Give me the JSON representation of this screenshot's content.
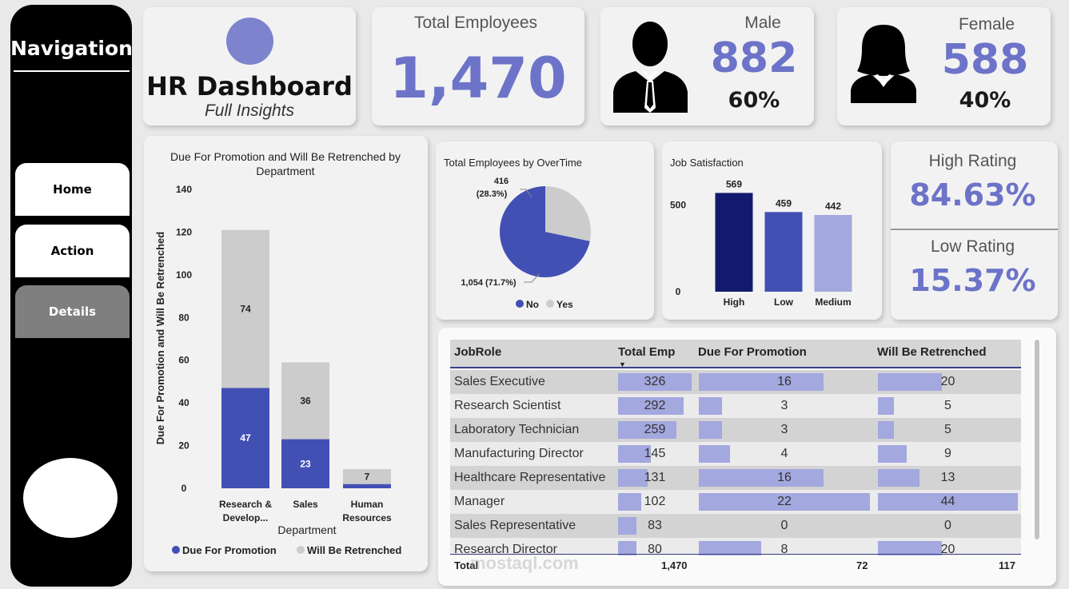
{
  "nav": {
    "title": "Navigation",
    "buttons": [
      "Home",
      "Action",
      "Details"
    ],
    "active": "Details"
  },
  "header": {
    "title": "HR Dashboard",
    "subtitle": "Full Insights"
  },
  "kpis": {
    "total_label": "Total Employees",
    "total_value": "1,470",
    "male_label": "Male",
    "male_value": "882",
    "male_pct": "60%",
    "female_label": "Female",
    "female_value": "588",
    "female_pct": "40%",
    "high_label": "High Rating",
    "high_value": "84.63%",
    "low_label": "Low Rating",
    "low_value": "15.37%"
  },
  "colors": {
    "accent": "#6c73c8",
    "dark_blue": "#131a6e",
    "mid_blue": "#4250b4",
    "light_blue": "#a3a8de",
    "grey": "#cccccc"
  },
  "icons": [
    "male-person-icon",
    "female-person-icon",
    "logo-circle-icon"
  ],
  "chart_data": [
    {
      "type": "bar",
      "stacked": true,
      "title": "Due For Promotion and Will Be Retrenched by Department",
      "xlabel": "Department",
      "ylabel": "Due For Promotion and Will Be Retrenched",
      "categories": [
        "Research & Develop...",
        "Sales",
        "Human Resources"
      ],
      "series": [
        {
          "name": "Due For Promotion",
          "values": [
            47,
            23,
            2
          ],
          "labels": [
            "47",
            "23",
            ""
          ],
          "color": "#4250b4"
        },
        {
          "name": "Will Be Retrenched",
          "values": [
            74,
            36,
            7
          ],
          "labels": [
            "74",
            "36",
            "7"
          ],
          "color": "#cccccc"
        }
      ],
      "yticks": [
        "0",
        "20",
        "40",
        "60",
        "80",
        "100",
        "120",
        "140"
      ],
      "ylim": [
        0,
        140
      ],
      "legend": "bottom"
    },
    {
      "type": "pie",
      "title": "Total Employees by OverTime",
      "slices": [
        {
          "name": "No",
          "value": 1054,
          "label": "1,054 (71.7%)",
          "color": "#4250b4"
        },
        {
          "name": "Yes",
          "value": 416,
          "label_value": "416",
          "label_pct": "(28.3%)",
          "color": "#cccccc"
        }
      ],
      "legend": "bottom"
    },
    {
      "type": "bar",
      "title": "Job Satisfaction",
      "categories": [
        "High",
        "Low",
        "Medium"
      ],
      "values": [
        569,
        459,
        442
      ],
      "colors": [
        "#131a6e",
        "#4250b4",
        "#a3a8de"
      ],
      "yticks": [
        "0",
        "500"
      ],
      "ylim": [
        0,
        640
      ]
    }
  ],
  "table": {
    "headers": [
      "JobRole",
      "Total Emp",
      "Due For Promotion",
      "Will Be Retrenched"
    ],
    "rows": [
      {
        "role": "Sales Executive",
        "total": 326,
        "promo": 16,
        "retr": 20
      },
      {
        "role": "Research Scientist",
        "total": 292,
        "promo": 3,
        "retr": 5
      },
      {
        "role": "Laboratory Technician",
        "total": 259,
        "promo": 3,
        "retr": 5
      },
      {
        "role": "Manufacturing Director",
        "total": 145,
        "promo": 4,
        "retr": 9
      },
      {
        "role": "Healthcare Representative",
        "total": 131,
        "promo": 16,
        "retr": 13
      },
      {
        "role": "Manager",
        "total": 102,
        "promo": 22,
        "retr": 44
      },
      {
        "role": "Sales Representative",
        "total": 83,
        "promo": 0,
        "retr": 0
      },
      {
        "role": "Research Director",
        "total": 80,
        "promo": 8,
        "retr": 20
      }
    ],
    "total_label": "Total",
    "totals": {
      "total": "1,470",
      "promo": "72",
      "retr": "117"
    }
  },
  "watermark": "mostaql.com"
}
